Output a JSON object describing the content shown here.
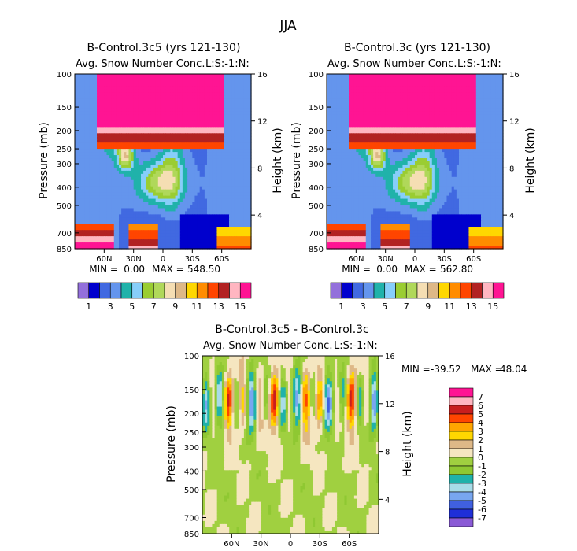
{
  "figure": {
    "title": "JJA"
  },
  "colors": {
    "abs_palette": [
      "#9370db",
      "#0000cd",
      "#4169e1",
      "#6495ed",
      "#20b2aa",
      "#87cefa",
      "#9acd32",
      "#b0d85a",
      "#f5deb3",
      "#deb887",
      "#ffd700",
      "#ff8c00",
      "#ff4500",
      "#b22222",
      "#ffb6c1",
      "#ff1493"
    ],
    "diff_palette": [
      "#8a5ad6",
      "#1f2fd8",
      "#4060e0",
      "#78a6f0",
      "#a8dce8",
      "#20b2aa",
      "#8fc832",
      "#a0d040",
      "#f5e6c0",
      "#deb887",
      "#ffd700",
      "#ffa500",
      "#ff4500",
      "#c81e1e",
      "#ffb6c1",
      "#ff1493"
    ]
  },
  "chart_data": [
    {
      "type": "heatmap",
      "title": "B-Control.3c5 (yrs 121-130)",
      "subtitle": "Avg. Snow Number Conc.",
      "right_tag": "L:S:-1:N:",
      "ylabel": "Pressure (mb)",
      "y2label": "Height (km)",
      "yticks": [
        "100",
        "150",
        "200",
        "250",
        "300",
        "400",
        "500",
        "700",
        "850"
      ],
      "y2ticks": [
        "16",
        "12",
        "8",
        "4"
      ],
      "xticks": [
        "60N",
        "30N",
        "0",
        "30S",
        "60S"
      ],
      "min_label": "MIN =",
      "min": "0.00",
      "max_label": "MAX =",
      "max": "548.50",
      "colorbar_labels": [
        "1",
        "3",
        "5",
        "7",
        "9",
        "11",
        "13",
        "15"
      ]
    },
    {
      "type": "heatmap",
      "title": "B-Control.3c (yrs 121-130)",
      "subtitle": "Avg. Snow Number Conc.",
      "right_tag": "L:S:-1:N:",
      "ylabel": "Pressure (mb)",
      "y2label": "Height (km)",
      "yticks": [
        "100",
        "150",
        "200",
        "250",
        "300",
        "400",
        "500",
        "700",
        "850"
      ],
      "y2ticks": [
        "16",
        "12",
        "8",
        "4"
      ],
      "xticks": [
        "60N",
        "30N",
        "0",
        "30S",
        "60S"
      ],
      "min_label": "MIN =",
      "min": "0.00",
      "max_label": "MAX =",
      "max": "562.80",
      "colorbar_labels": [
        "1",
        "3",
        "5",
        "7",
        "9",
        "11",
        "13",
        "15"
      ]
    },
    {
      "type": "heatmap",
      "title": "B-Control.3c5 - B-Control.3c",
      "subtitle": "Avg. Snow Number Conc.",
      "right_tag": "L:S:-1:N:",
      "ylabel": "Pressure (mb)",
      "y2label": "Height (km)",
      "yticks": [
        "100",
        "150",
        "200",
        "250",
        "300",
        "400",
        "500",
        "700",
        "850"
      ],
      "y2ticks": [
        "16",
        "12",
        "8",
        "4"
      ],
      "xticks": [
        "60N",
        "30N",
        "0",
        "30S",
        "60S"
      ],
      "min_label": "MIN =",
      "min": "-39.52",
      "max_label": "MAX =",
      "max": "48.04",
      "colorbar_labels": [
        "7",
        "6",
        "5",
        "4",
        "3",
        "2",
        "1",
        "0",
        "-1",
        "-2",
        "-3",
        "-4",
        "-5",
        "-6",
        "-7"
      ]
    }
  ]
}
